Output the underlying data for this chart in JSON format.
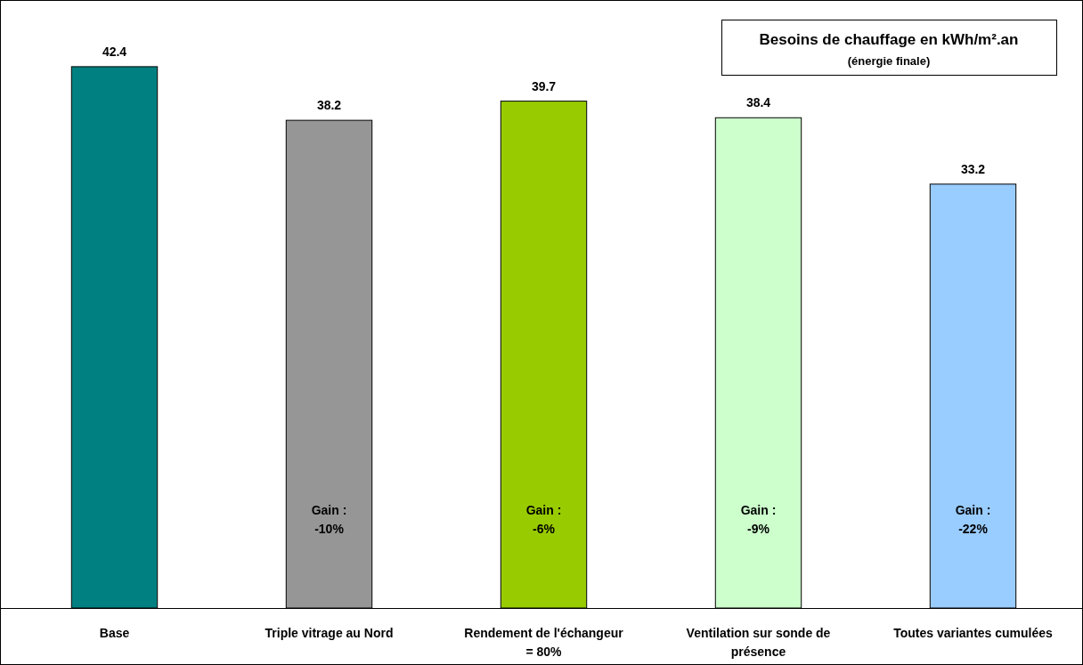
{
  "chart_data": {
    "type": "bar",
    "title": "Besoins de chauffage en kWh/m².an",
    "subtitle": "(énergie finale)",
    "categories": [
      "Base",
      "Triple vitrage au Nord",
      "Rendement de l'échangeur = 80%",
      "Ventilation sur sonde de présence",
      "Toutes variantes cumulées"
    ],
    "values": [
      42.4,
      38.2,
      39.7,
      38.4,
      33.2
    ],
    "colors": [
      "#008080",
      "#969696",
      "#99cc00",
      "#ccffcc",
      "#99ccff"
    ],
    "data_labels": true,
    "annotations": [
      "Gain :\n-10%",
      "Gain :\n-6%",
      "Gain :\n-9%",
      "Gain :\n-22%"
    ]
  }
}
